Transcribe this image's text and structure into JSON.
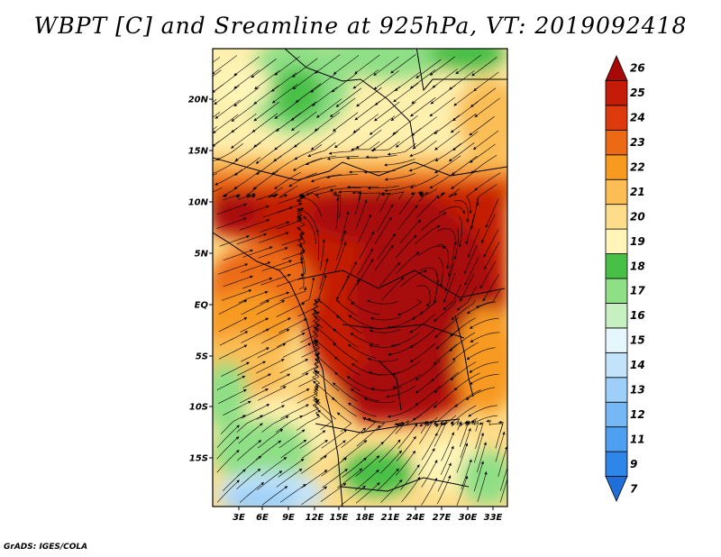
{
  "title": "WBPT [C] and Sreamline at 925hPa, VT: 2019092418",
  "credit": "GrADS: IGES/COLA",
  "map": {
    "lat_ticks": [
      "20N",
      "15N",
      "10N",
      "5N",
      "EQ",
      "5S",
      "10S",
      "15S"
    ],
    "lon_ticks": [
      "3E",
      "6E",
      "9E",
      "12E",
      "15E",
      "18E",
      "21E",
      "24E",
      "27E",
      "30E",
      "33E"
    ]
  },
  "colorbar": {
    "levels": [
      {
        "label": "7",
        "color": "#1e6fd9"
      },
      {
        "label": "9",
        "color": "#2e86e8"
      },
      {
        "label": "11",
        "color": "#4ea1f0"
      },
      {
        "label": "12",
        "color": "#74b9f5"
      },
      {
        "label": "13",
        "color": "#9dcff8"
      },
      {
        "label": "14",
        "color": "#c3e3fb"
      },
      {
        "label": "15",
        "color": "#e6f6fd"
      },
      {
        "label": "16",
        "color": "#c6f0c0"
      },
      {
        "label": "17",
        "color": "#8fdf86"
      },
      {
        "label": "18",
        "color": "#48c046"
      },
      {
        "label": "19",
        "color": "#fff5b8"
      },
      {
        "label": "20",
        "color": "#fddc8a"
      },
      {
        "label": "21",
        "color": "#fbbd54"
      },
      {
        "label": "22",
        "color": "#f79a20"
      },
      {
        "label": "23",
        "color": "#ec6a14"
      },
      {
        "label": "24",
        "color": "#dd3b0e"
      },
      {
        "label": "25",
        "color": "#c41c06"
      },
      {
        "label": "26",
        "color": "#a80808"
      }
    ]
  }
}
